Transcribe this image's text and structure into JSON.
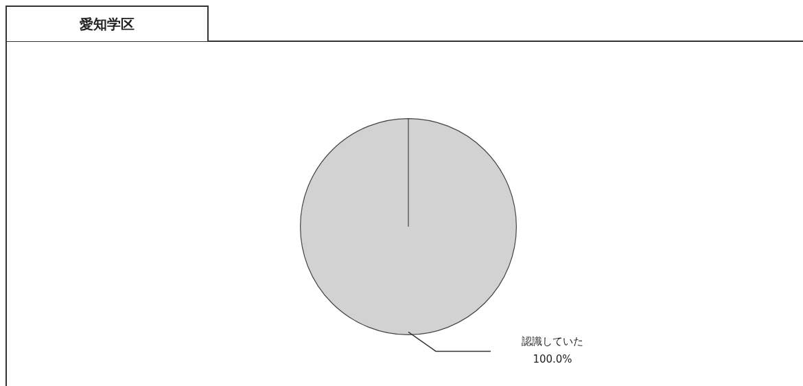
{
  "chart_data": {
    "type": "pie",
    "title": "愛知学区",
    "categories": [
      "認識していた"
    ],
    "values": [
      100
    ],
    "colors": [
      "#d2d2d2"
    ],
    "value_labels": [
      "100.0%"
    ]
  }
}
